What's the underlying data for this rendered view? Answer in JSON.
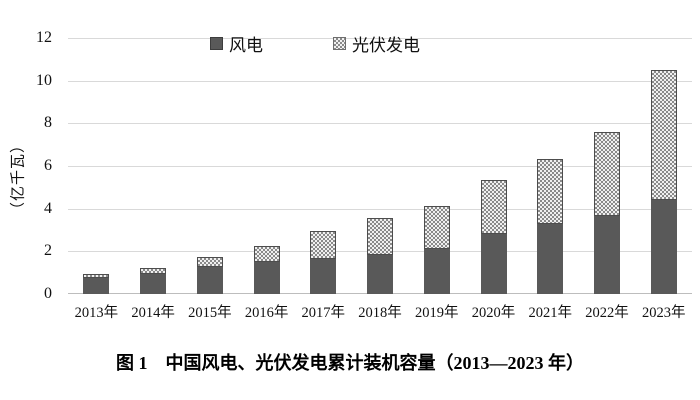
{
  "figure": {
    "caption": "图 1　中国风电、光伏发电累计装机容量（2013—2023 年）"
  },
  "chart_data": {
    "type": "bar",
    "stacked": true,
    "title": "图 1　中国风电、光伏发电累计装机容量（2013—2023 年）",
    "xlabel": "",
    "ylabel": "（亿千瓦）",
    "ylim": [
      0,
      12
    ],
    "yticks": [
      0,
      2,
      4,
      6,
      8,
      10,
      12
    ],
    "grid": true,
    "legend_position": "top-center",
    "categories": [
      "2013年",
      "2014年",
      "2015年",
      "2016年",
      "2017年",
      "2018年",
      "2019年",
      "2020年",
      "2021年",
      "2022年",
      "2023年"
    ],
    "series": [
      {
        "name": "风电",
        "style": "solid",
        "color": "#595959",
        "values": [
          0.77,
          0.96,
          1.29,
          1.49,
          1.64,
          1.84,
          2.1,
          2.81,
          3.28,
          3.65,
          4.41
        ]
      },
      {
        "name": "光伏发电",
        "style": "dotted-pattern",
        "color": "#c9c9c9",
        "pattern_dot_color": "#8a8a8a",
        "pattern_bg_color": "#f0f0f0",
        "border_color": "#4d4d4d",
        "values": [
          0.19,
          0.28,
          0.43,
          0.77,
          1.3,
          1.74,
          2.04,
          2.53,
          3.06,
          3.93,
          6.09
        ]
      }
    ]
  },
  "colors": {
    "background": "#ffffff",
    "gridline": "#d9d9d9",
    "baseline": "#bdbdbd",
    "text": "#111111"
  }
}
